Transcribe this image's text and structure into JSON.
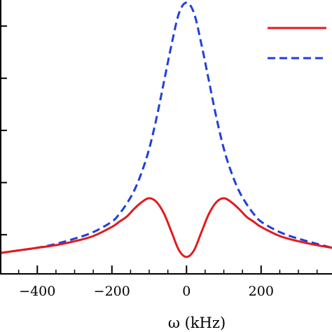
{
  "chart_data": {
    "type": "line",
    "xlabel": "ω (kHz)",
    "ylabel": "",
    "xlim": [
      -500,
      390
    ],
    "ylim": [
      -0.05,
      1.0
    ],
    "xticks": [
      -400,
      -200,
      0,
      200
    ],
    "xtick_labels": [
      "−400",
      "−200",
      "0",
      "200"
    ],
    "grid": false,
    "legend": {
      "position": "top-right",
      "entries": 2
    },
    "series": [
      {
        "color": "#e31a1c",
        "style": "solid",
        "x": [
          -500,
          -450,
          -400,
          -350,
          -300,
          -250,
          -200,
          -180,
          -160,
          -140,
          -120,
          -100,
          -80,
          -60,
          -40,
          -20,
          0,
          20,
          40,
          60,
          80,
          100,
          120,
          140,
          160,
          180,
          200,
          250,
          300,
          350,
          390
        ],
        "y": [
          0.03,
          0.04,
          0.05,
          0.06,
          0.075,
          0.095,
          0.13,
          0.15,
          0.17,
          0.2,
          0.225,
          0.24,
          0.225,
          0.18,
          0.11,
          0.04,
          0.015,
          0.04,
          0.11,
          0.18,
          0.225,
          0.24,
          0.225,
          0.2,
          0.17,
          0.15,
          0.13,
          0.095,
          0.075,
          0.06,
          0.05
        ]
      },
      {
        "color": "#1f3fdc",
        "style": "dashed",
        "x": [
          -500,
          -450,
          -400,
          -350,
          -300,
          -250,
          -200,
          -180,
          -160,
          -140,
          -120,
          -100,
          -80,
          -60,
          -40,
          -20,
          0,
          20,
          40,
          60,
          80,
          100,
          120,
          140,
          160,
          180,
          200,
          250,
          300,
          350,
          390
        ],
        "y": [
          0.03,
          0.04,
          0.05,
          0.065,
          0.085,
          0.11,
          0.15,
          0.18,
          0.22,
          0.27,
          0.34,
          0.43,
          0.55,
          0.69,
          0.83,
          0.95,
          0.99,
          0.95,
          0.83,
          0.69,
          0.55,
          0.43,
          0.34,
          0.27,
          0.22,
          0.18,
          0.15,
          0.11,
          0.085,
          0.065,
          0.05
        ]
      }
    ]
  }
}
